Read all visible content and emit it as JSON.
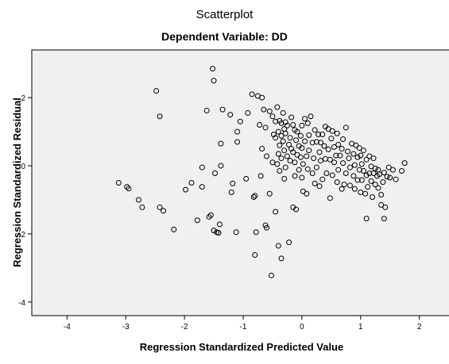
{
  "chart_data": {
    "type": "scatter",
    "title": "Scatterplot",
    "subtitle": "Dependent Variable: DD",
    "xlabel": "Regression Standardized Predicted Value",
    "ylabel": "Regression Standardized Residual",
    "xlim": [
      -4.6,
      2.6
    ],
    "ylim": [
      -4.4,
      3.4
    ],
    "xticks": [
      -4,
      -3,
      -2,
      -1,
      0,
      1,
      2
    ],
    "yticks": [
      -4,
      -2,
      0,
      2
    ],
    "grid": false,
    "plot_background": "#f0f0f0",
    "marker_color": "#000000",
    "points": [
      [
        -3.12,
        -0.5
      ],
      [
        -2.98,
        -0.62
      ],
      [
        -2.95,
        -0.67
      ],
      [
        -2.78,
        -1.0
      ],
      [
        -2.72,
        -1.22
      ],
      [
        -2.48,
        2.2
      ],
      [
        -2.42,
        1.45
      ],
      [
        -2.42,
        -1.22
      ],
      [
        -2.36,
        -1.32
      ],
      [
        -2.18,
        -1.87
      ],
      [
        -1.98,
        -0.7
      ],
      [
        -1.88,
        -0.5
      ],
      [
        -1.78,
        -1.6
      ],
      [
        -1.7,
        -0.62
      ],
      [
        -1.7,
        -0.05
      ],
      [
        -1.62,
        1.62
      ],
      [
        -1.58,
        -1.5
      ],
      [
        -1.55,
        -1.45
      ],
      [
        -1.52,
        2.85
      ],
      [
        -1.5,
        2.5
      ],
      [
        -1.5,
        -1.9
      ],
      [
        -1.48,
        -0.22
      ],
      [
        -1.45,
        -1.95
      ],
      [
        -1.42,
        -1.97
      ],
      [
        -1.4,
        -1.72
      ],
      [
        -1.38,
        0.65
      ],
      [
        -1.38,
        0.0
      ],
      [
        -1.35,
        1.65
      ],
      [
        -1.22,
        1.5
      ],
      [
        -1.2,
        -0.78
      ],
      [
        -1.18,
        -0.52
      ],
      [
        -1.12,
        -1.95
      ],
      [
        -1.1,
        1.0
      ],
      [
        -1.1,
        0.7
      ],
      [
        -1.05,
        1.3
      ],
      [
        -0.95,
        -0.38
      ],
      [
        -0.92,
        1.55
      ],
      [
        -0.85,
        2.1
      ],
      [
        -0.82,
        -0.92
      ],
      [
        -0.8,
        -0.88
      ],
      [
        -0.8,
        -2.62
      ],
      [
        -0.78,
        -1.95
      ],
      [
        -0.75,
        2.05
      ],
      [
        -0.72,
        1.2
      ],
      [
        -0.7,
        -0.3
      ],
      [
        -0.68,
        2.0
      ],
      [
        -0.68,
        0.5
      ],
      [
        -0.65,
        1.65
      ],
      [
        -0.62,
        -1.75
      ],
      [
        -0.62,
        1.12
      ],
      [
        -0.6,
        0.28
      ],
      [
        -0.6,
        -1.82
      ],
      [
        -0.55,
        1.6
      ],
      [
        -0.55,
        -0.82
      ],
      [
        -0.52,
        -3.22
      ],
      [
        -0.5,
        1.45
      ],
      [
        -0.5,
        0.1
      ],
      [
        -0.48,
        0.92
      ],
      [
        -0.45,
        1.3
      ],
      [
        -0.45,
        0.82
      ],
      [
        -0.45,
        -1.35
      ],
      [
        -0.42,
        1.72
      ],
      [
        -0.42,
        0.05
      ],
      [
        -0.4,
        1.0
      ],
      [
        -0.4,
        0.35
      ],
      [
        -0.4,
        -2.35
      ],
      [
        -0.38,
        1.32
      ],
      [
        -0.38,
        0.6
      ],
      [
        -0.38,
        -0.15
      ],
      [
        -0.35,
        1.25
      ],
      [
        -0.35,
        0.88
      ],
      [
        -0.35,
        0.22
      ],
      [
        -0.35,
        -2.72
      ],
      [
        -0.32,
        1.55
      ],
      [
        -0.32,
        0.72
      ],
      [
        -0.3,
        1.08
      ],
      [
        -0.3,
        0.45
      ],
      [
        -0.3,
        -0.38
      ],
      [
        -0.28,
        1.28
      ],
      [
        -0.28,
        0.95
      ],
      [
        -0.28,
        -0.05
      ],
      [
        -0.25,
        1.18
      ],
      [
        -0.25,
        0.28
      ],
      [
        -0.22,
        0.62
      ],
      [
        -0.22,
        -2.25
      ],
      [
        -0.2,
        0.82
      ],
      [
        -0.2,
        0.15
      ],
      [
        -0.18,
        1.42
      ],
      [
        -0.18,
        0.5
      ],
      [
        -0.15,
        1.2
      ],
      [
        -0.15,
        0.4
      ],
      [
        -0.15,
        -1.22
      ],
      [
        -0.12,
        1.05
      ],
      [
        -0.12,
        0.1
      ],
      [
        -0.12,
        -0.3
      ],
      [
        -0.1,
        0.75
      ],
      [
        -0.1,
        -1.28
      ],
      [
        -0.08,
        1.0
      ],
      [
        -0.08,
        0.32
      ],
      [
        -0.05,
        0.58
      ],
      [
        -0.05,
        -0.12
      ],
      [
        -0.02,
        0.88
      ],
      [
        -0.02,
        0.25
      ],
      [
        0.0,
        1.18
      ],
      [
        0.0,
        0.52
      ],
      [
        0.0,
        -0.35
      ],
      [
        0.02,
        0.05
      ],
      [
        0.02,
        -0.75
      ],
      [
        0.05,
        1.38
      ],
      [
        0.05,
        0.72
      ],
      [
        0.08,
        0.28
      ],
      [
        0.08,
        -0.82
      ],
      [
        0.1,
        1.25
      ],
      [
        0.1,
        -0.1
      ],
      [
        0.12,
        0.9
      ],
      [
        0.12,
        0.45
      ],
      [
        0.15,
        1.45
      ],
      [
        0.18,
        0.68
      ],
      [
        0.18,
        -0.22
      ],
      [
        0.2,
        0.22
      ],
      [
        0.22,
        1.05
      ],
      [
        0.22,
        -0.52
      ],
      [
        0.25,
        0.7
      ],
      [
        0.25,
        -0.05
      ],
      [
        0.28,
        0.92
      ],
      [
        0.3,
        0.4
      ],
      [
        0.3,
        -0.6
      ],
      [
        0.32,
        0.68
      ],
      [
        0.32,
        0.15
      ],
      [
        0.35,
        0.92
      ],
      [
        0.35,
        -0.4
      ],
      [
        0.38,
        0.58
      ],
      [
        0.4,
        1.15
      ],
      [
        0.4,
        0.2
      ],
      [
        0.42,
        -0.22
      ],
      [
        0.45,
        1.08
      ],
      [
        0.45,
        0.48
      ],
      [
        0.48,
        0.18
      ],
      [
        0.48,
        -0.95
      ],
      [
        0.5,
        0.8
      ],
      [
        0.52,
        1.02
      ],
      [
        0.52,
        -0.28
      ],
      [
        0.55,
        0.55
      ],
      [
        0.55,
        0.1
      ],
      [
        0.58,
        0.3
      ],
      [
        0.6,
        0.95
      ],
      [
        0.6,
        -0.48
      ],
      [
        0.62,
        0.62
      ],
      [
        0.62,
        -0.12
      ],
      [
        0.65,
        0.3
      ],
      [
        0.68,
        0.5
      ],
      [
        0.68,
        -0.68
      ],
      [
        0.7,
        0.78
      ],
      [
        0.7,
        0.08
      ],
      [
        0.72,
        -0.55
      ],
      [
        0.75,
        1.12
      ],
      [
        0.75,
        -0.22
      ],
      [
        0.78,
        0.42
      ],
      [
        0.8,
        0.22
      ],
      [
        0.82,
        -0.05
      ],
      [
        0.82,
        -0.58
      ],
      [
        0.85,
        0.65
      ],
      [
        0.88,
        0.35
      ],
      [
        0.88,
        -0.3
      ],
      [
        0.9,
        0.02
      ],
      [
        0.9,
        -0.68
      ],
      [
        0.92,
        0.6
      ],
      [
        0.95,
        -0.42
      ],
      [
        0.95,
        0.25
      ],
      [
        0.98,
        0.52
      ],
      [
        0.98,
        -0.12
      ],
      [
        1.0,
        0.3
      ],
      [
        1.0,
        -0.78
      ],
      [
        1.02,
        0.05
      ],
      [
        1.02,
        -0.42
      ],
      [
        1.05,
        -0.15
      ],
      [
        1.05,
        0.45
      ],
      [
        1.08,
        -0.82
      ],
      [
        1.1,
        0.18
      ],
      [
        1.1,
        -0.28
      ],
      [
        1.1,
        -1.55
      ],
      [
        1.12,
        -0.62
      ],
      [
        1.15,
        0.28
      ],
      [
        1.15,
        -0.22
      ],
      [
        1.18,
        -0.02
      ],
      [
        1.18,
        -0.45
      ],
      [
        1.2,
        -0.92
      ],
      [
        1.22,
        -0.22
      ],
      [
        1.22,
        0.22
      ],
      [
        1.25,
        -0.55
      ],
      [
        1.25,
        -0.08
      ],
      [
        1.28,
        -0.3
      ],
      [
        1.3,
        -0.12
      ],
      [
        1.3,
        -0.65
      ],
      [
        1.32,
        -0.25
      ],
      [
        1.35,
        -1.15
      ],
      [
        1.35,
        -0.85
      ],
      [
        1.38,
        -0.48
      ],
      [
        1.4,
        -0.2
      ],
      [
        1.4,
        -1.55
      ],
      [
        1.42,
        -1.22
      ],
      [
        1.45,
        -0.32
      ],
      [
        1.48,
        -0.05
      ],
      [
        1.5,
        -0.35
      ],
      [
        1.55,
        -0.12
      ],
      [
        1.6,
        -0.4
      ],
      [
        1.7,
        -0.15
      ],
      [
        1.75,
        0.08
      ]
    ]
  }
}
